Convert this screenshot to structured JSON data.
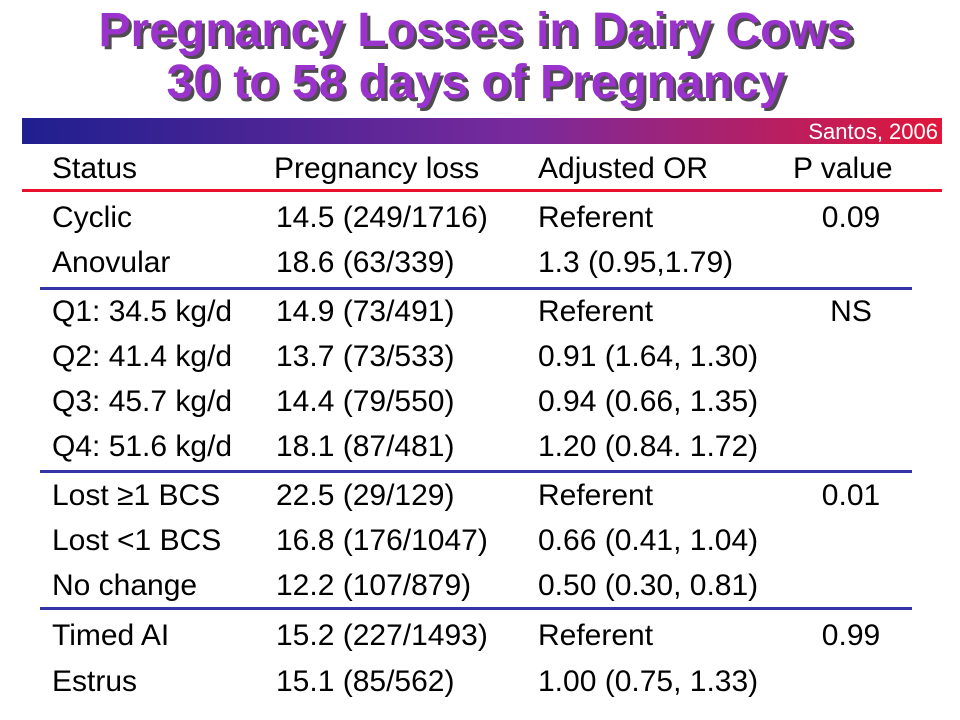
{
  "title": {
    "line1": "Pregnancy Losses in Dairy Cows",
    "line2": "30 to 58 days of Pregnancy"
  },
  "citation": "Santos, 2006",
  "colors": {
    "title": "#9933cc",
    "title_shadow": "#4d4d4d",
    "bar_start": "#1f1f8f",
    "bar_mid": "#7a2a9c",
    "bar_end": "#e0173a",
    "header_rule": "#e8102c",
    "group_rule": "#3434a6",
    "text": "#000000"
  },
  "table": {
    "headers": [
      "Status",
      "Pregnancy loss",
      "Adjusted OR",
      "P value"
    ],
    "groups": [
      {
        "rows": [
          {
            "status": "Cyclic",
            "loss": "14.5 (249/1716)",
            "or": "Referent",
            "p": "0.09"
          },
          {
            "status": "Anovular",
            "loss": "18.6 (63/339)",
            "or": "1.3 (0.95,1.79)"
          }
        ]
      },
      {
        "rows": [
          {
            "status": "Q1: 34.5 kg/d",
            "loss": "14.9 (73/491)",
            "or": "Referent",
            "p": "NS"
          },
          {
            "status": "Q2: 41.4 kg/d",
            "loss": "13.7 (73/533)",
            "or": "0.91 (1.64, 1.30)"
          },
          {
            "status": "Q3: 45.7 kg/d",
            "loss": "14.4 (79/550)",
            "or": "0.94 (0.66, 1.35)"
          },
          {
            "status": "Q4: 51.6 kg/d",
            "loss": "18.1 (87/481)",
            "or": "1.20 (0.84. 1.72)"
          }
        ]
      },
      {
        "rows": [
          {
            "status": "Lost ≥1 BCS",
            "loss": "22.5 (29/129)",
            "or": "Referent",
            "p": "0.01"
          },
          {
            "status": "Lost <1 BCS",
            "loss": "16.8 (176/1047)",
            "or": "0.66 (0.41, 1.04)"
          },
          {
            "status": "No change",
            "loss": "12.2 (107/879)",
            "or": "0.50 (0.30, 0.81)"
          }
        ]
      },
      {
        "rows": [
          {
            "status": "Timed AI",
            "loss": "15.2 (227/1493)",
            "or": "Referent",
            "p": "0.99"
          },
          {
            "status": "Estrus",
            "loss": "15.1 (85/562)",
            "or": "1.00 (0.75, 1.33)"
          }
        ]
      }
    ]
  }
}
